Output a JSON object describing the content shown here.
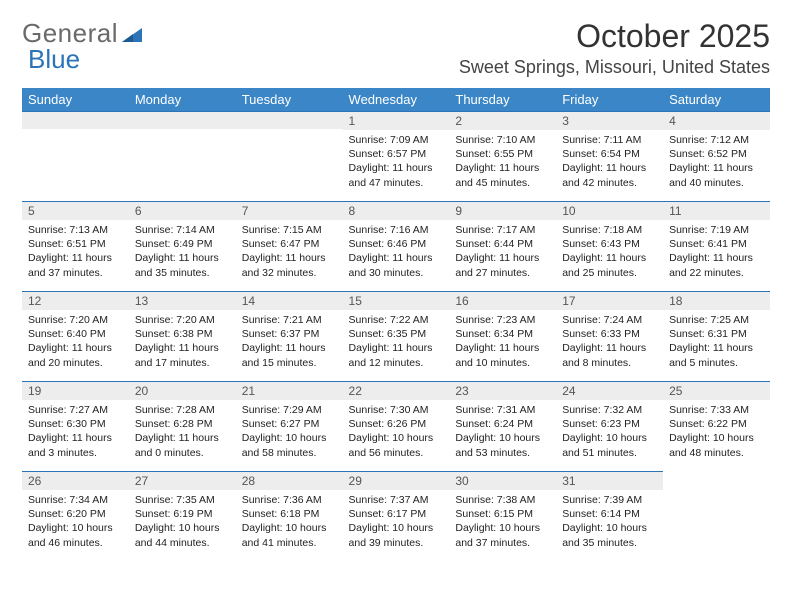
{
  "brand": {
    "part1": "General",
    "part2": "Blue"
  },
  "title": "October 2025",
  "location": "Sweet Springs, Missouri, United States",
  "colors": {
    "header_bg": "#3b86c6",
    "header_text": "#ffffff",
    "daynum_bg": "#ededed",
    "border": "#2b74b8",
    "logo_blue": "#2b74b8",
    "logo_gray": "#6a6a6a",
    "text": "#222222",
    "page_bg": "#ffffff"
  },
  "typography": {
    "title_fontsize": 32,
    "location_fontsize": 18,
    "header_fontsize": 13,
    "daynum_fontsize": 12,
    "details_fontsize": 10.5
  },
  "day_headers": [
    "Sunday",
    "Monday",
    "Tuesday",
    "Wednesday",
    "Thursday",
    "Friday",
    "Saturday"
  ],
  "weeks": [
    [
      null,
      null,
      null,
      {
        "n": "1",
        "sr": "Sunrise: 7:09 AM",
        "ss": "Sunset: 6:57 PM",
        "d1": "Daylight: 11 hours",
        "d2": "and 47 minutes."
      },
      {
        "n": "2",
        "sr": "Sunrise: 7:10 AM",
        "ss": "Sunset: 6:55 PM",
        "d1": "Daylight: 11 hours",
        "d2": "and 45 minutes."
      },
      {
        "n": "3",
        "sr": "Sunrise: 7:11 AM",
        "ss": "Sunset: 6:54 PM",
        "d1": "Daylight: 11 hours",
        "d2": "and 42 minutes."
      },
      {
        "n": "4",
        "sr": "Sunrise: 7:12 AM",
        "ss": "Sunset: 6:52 PM",
        "d1": "Daylight: 11 hours",
        "d2": "and 40 minutes."
      }
    ],
    [
      {
        "n": "5",
        "sr": "Sunrise: 7:13 AM",
        "ss": "Sunset: 6:51 PM",
        "d1": "Daylight: 11 hours",
        "d2": "and 37 minutes."
      },
      {
        "n": "6",
        "sr": "Sunrise: 7:14 AM",
        "ss": "Sunset: 6:49 PM",
        "d1": "Daylight: 11 hours",
        "d2": "and 35 minutes."
      },
      {
        "n": "7",
        "sr": "Sunrise: 7:15 AM",
        "ss": "Sunset: 6:47 PM",
        "d1": "Daylight: 11 hours",
        "d2": "and 32 minutes."
      },
      {
        "n": "8",
        "sr": "Sunrise: 7:16 AM",
        "ss": "Sunset: 6:46 PM",
        "d1": "Daylight: 11 hours",
        "d2": "and 30 minutes."
      },
      {
        "n": "9",
        "sr": "Sunrise: 7:17 AM",
        "ss": "Sunset: 6:44 PM",
        "d1": "Daylight: 11 hours",
        "d2": "and 27 minutes."
      },
      {
        "n": "10",
        "sr": "Sunrise: 7:18 AM",
        "ss": "Sunset: 6:43 PM",
        "d1": "Daylight: 11 hours",
        "d2": "and 25 minutes."
      },
      {
        "n": "11",
        "sr": "Sunrise: 7:19 AM",
        "ss": "Sunset: 6:41 PM",
        "d1": "Daylight: 11 hours",
        "d2": "and 22 minutes."
      }
    ],
    [
      {
        "n": "12",
        "sr": "Sunrise: 7:20 AM",
        "ss": "Sunset: 6:40 PM",
        "d1": "Daylight: 11 hours",
        "d2": "and 20 minutes."
      },
      {
        "n": "13",
        "sr": "Sunrise: 7:20 AM",
        "ss": "Sunset: 6:38 PM",
        "d1": "Daylight: 11 hours",
        "d2": "and 17 minutes."
      },
      {
        "n": "14",
        "sr": "Sunrise: 7:21 AM",
        "ss": "Sunset: 6:37 PM",
        "d1": "Daylight: 11 hours",
        "d2": "and 15 minutes."
      },
      {
        "n": "15",
        "sr": "Sunrise: 7:22 AM",
        "ss": "Sunset: 6:35 PM",
        "d1": "Daylight: 11 hours",
        "d2": "and 12 minutes."
      },
      {
        "n": "16",
        "sr": "Sunrise: 7:23 AM",
        "ss": "Sunset: 6:34 PM",
        "d1": "Daylight: 11 hours",
        "d2": "and 10 minutes."
      },
      {
        "n": "17",
        "sr": "Sunrise: 7:24 AM",
        "ss": "Sunset: 6:33 PM",
        "d1": "Daylight: 11 hours",
        "d2": "and 8 minutes."
      },
      {
        "n": "18",
        "sr": "Sunrise: 7:25 AM",
        "ss": "Sunset: 6:31 PM",
        "d1": "Daylight: 11 hours",
        "d2": "and 5 minutes."
      }
    ],
    [
      {
        "n": "19",
        "sr": "Sunrise: 7:27 AM",
        "ss": "Sunset: 6:30 PM",
        "d1": "Daylight: 11 hours",
        "d2": "and 3 minutes."
      },
      {
        "n": "20",
        "sr": "Sunrise: 7:28 AM",
        "ss": "Sunset: 6:28 PM",
        "d1": "Daylight: 11 hours",
        "d2": "and 0 minutes."
      },
      {
        "n": "21",
        "sr": "Sunrise: 7:29 AM",
        "ss": "Sunset: 6:27 PM",
        "d1": "Daylight: 10 hours",
        "d2": "and 58 minutes."
      },
      {
        "n": "22",
        "sr": "Sunrise: 7:30 AM",
        "ss": "Sunset: 6:26 PM",
        "d1": "Daylight: 10 hours",
        "d2": "and 56 minutes."
      },
      {
        "n": "23",
        "sr": "Sunrise: 7:31 AM",
        "ss": "Sunset: 6:24 PM",
        "d1": "Daylight: 10 hours",
        "d2": "and 53 minutes."
      },
      {
        "n": "24",
        "sr": "Sunrise: 7:32 AM",
        "ss": "Sunset: 6:23 PM",
        "d1": "Daylight: 10 hours",
        "d2": "and 51 minutes."
      },
      {
        "n": "25",
        "sr": "Sunrise: 7:33 AM",
        "ss": "Sunset: 6:22 PM",
        "d1": "Daylight: 10 hours",
        "d2": "and 48 minutes."
      }
    ],
    [
      {
        "n": "26",
        "sr": "Sunrise: 7:34 AM",
        "ss": "Sunset: 6:20 PM",
        "d1": "Daylight: 10 hours",
        "d2": "and 46 minutes."
      },
      {
        "n": "27",
        "sr": "Sunrise: 7:35 AM",
        "ss": "Sunset: 6:19 PM",
        "d1": "Daylight: 10 hours",
        "d2": "and 44 minutes."
      },
      {
        "n": "28",
        "sr": "Sunrise: 7:36 AM",
        "ss": "Sunset: 6:18 PM",
        "d1": "Daylight: 10 hours",
        "d2": "and 41 minutes."
      },
      {
        "n": "29",
        "sr": "Sunrise: 7:37 AM",
        "ss": "Sunset: 6:17 PM",
        "d1": "Daylight: 10 hours",
        "d2": "and 39 minutes."
      },
      {
        "n": "30",
        "sr": "Sunrise: 7:38 AM",
        "ss": "Sunset: 6:15 PM",
        "d1": "Daylight: 10 hours",
        "d2": "and 37 minutes."
      },
      {
        "n": "31",
        "sr": "Sunrise: 7:39 AM",
        "ss": "Sunset: 6:14 PM",
        "d1": "Daylight: 10 hours",
        "d2": "and 35 minutes."
      },
      null
    ]
  ]
}
